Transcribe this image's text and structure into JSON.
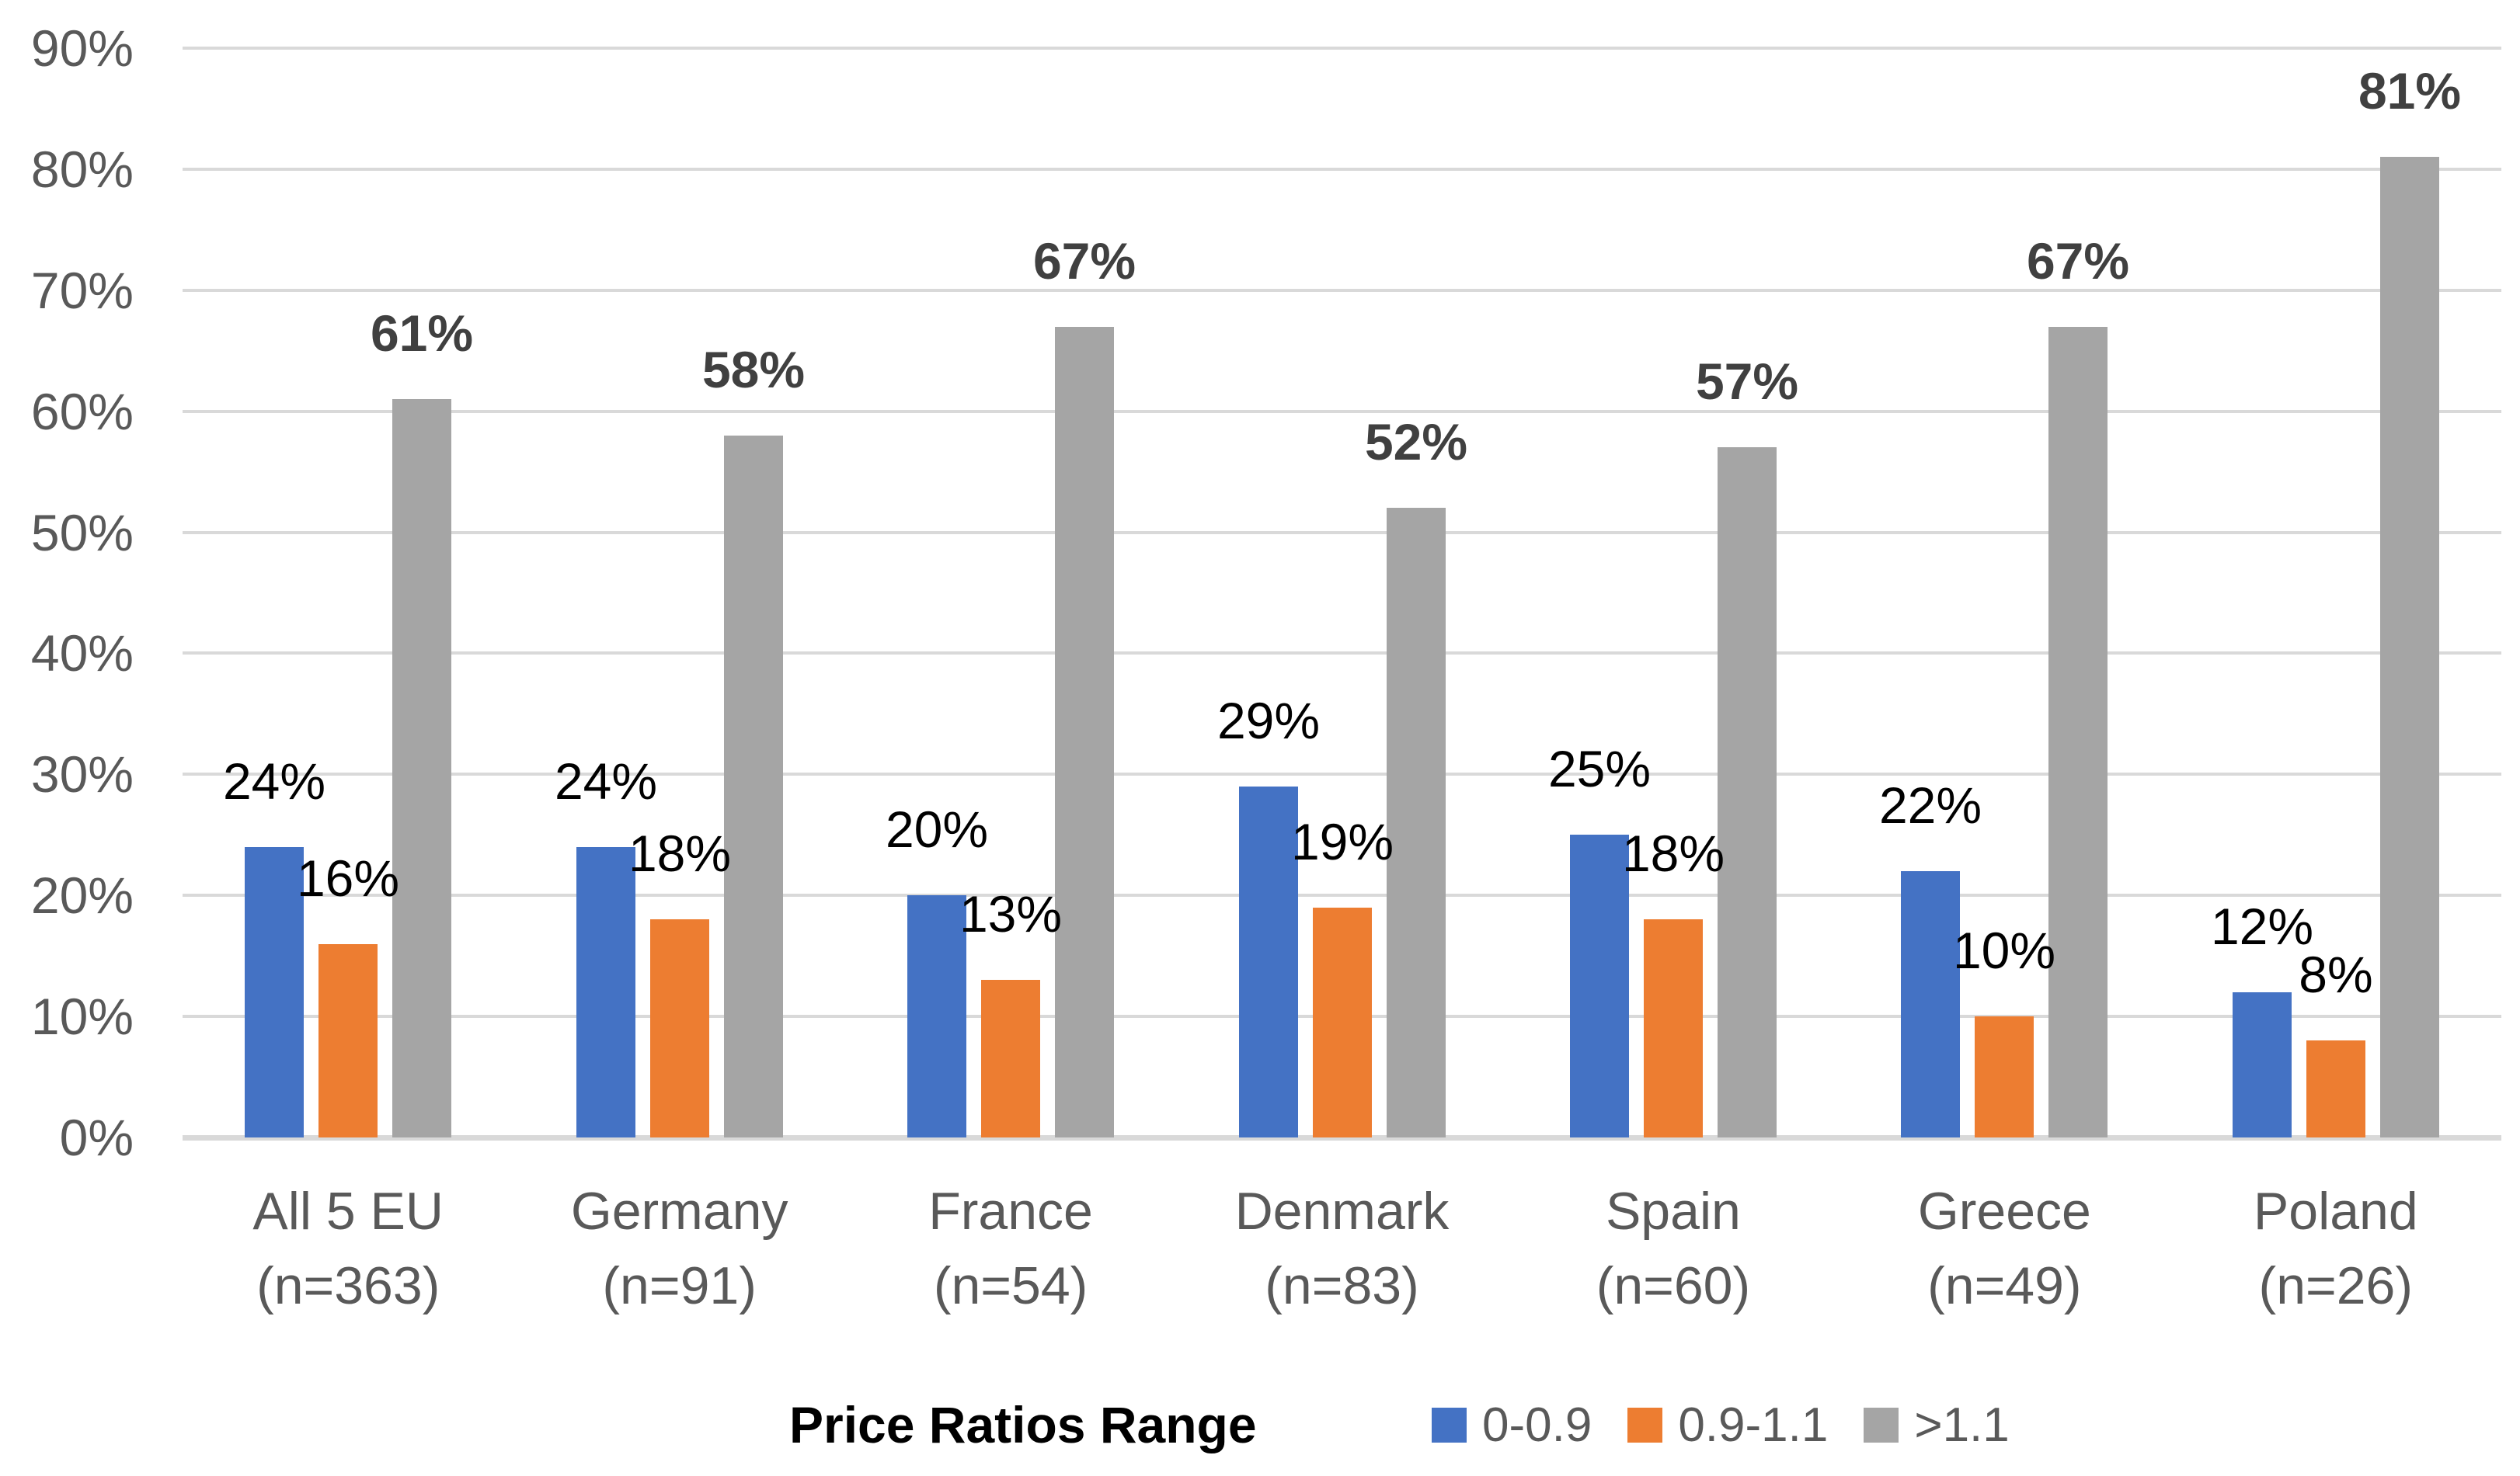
{
  "chart_data": {
    "type": "bar",
    "title": "",
    "xlabel": "Price Ratios Range",
    "ylabel": "",
    "ylim": [
      0,
      90
    ],
    "y_tick_step": 10,
    "y_ticks": [
      "0%",
      "10%",
      "20%",
      "30%",
      "40%",
      "50%",
      "60%",
      "70%",
      "80%",
      "90%"
    ],
    "grid": true,
    "legend_position": "bottom",
    "value_suffix": "%",
    "categories": [
      {
        "label": "All 5 EU",
        "sublabel": "(n=363)"
      },
      {
        "label": "Germany",
        "sublabel": "(n=91)"
      },
      {
        "label": "France",
        "sublabel": "(n=54)"
      },
      {
        "label": "Denmark",
        "sublabel": "(n=83)"
      },
      {
        "label": "Spain",
        "sublabel": "(n=60)"
      },
      {
        "label": "Greece",
        "sublabel": "(n=49)"
      },
      {
        "label": "Poland",
        "sublabel": "(n=26)"
      }
    ],
    "series": [
      {
        "name": "0-0.9",
        "color": "#4472C4",
        "label_color": "#000000",
        "label_bold": false,
        "values": [
          24,
          24,
          20,
          29,
          25,
          22,
          12
        ]
      },
      {
        "name": "0.9-1.1",
        "color": "#ED7D31",
        "label_color": "#000000",
        "label_bold": false,
        "values": [
          16,
          18,
          13,
          19,
          18,
          10,
          8
        ]
      },
      {
        "name": ">1.1",
        "color": "#A5A5A5",
        "label_color": "#404040",
        "label_bold": true,
        "values": [
          61,
          58,
          67,
          52,
          57,
          67,
          81
        ]
      }
    ],
    "legend": {
      "title": "Price Ratios Range",
      "items": [
        "0-0.9",
        "0.9-1.1",
        ">1.1"
      ]
    },
    "colors": {
      "gridline": "#D9D9D9",
      "axis_text": "#595959",
      "background": "#FFFFFF"
    }
  }
}
